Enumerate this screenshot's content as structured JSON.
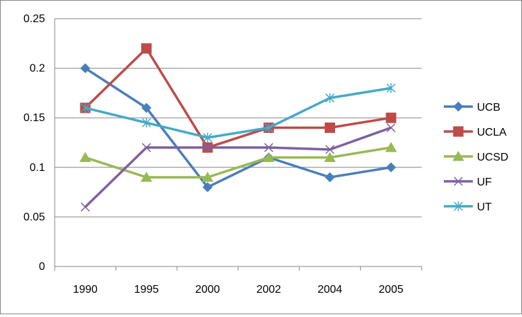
{
  "chart_data": {
    "type": "line",
    "title": "",
    "xlabel": "",
    "ylabel": "",
    "categories": [
      "1990",
      "1995",
      "2000",
      "2002",
      "2004",
      "2005"
    ],
    "ylim": [
      0,
      0.25
    ],
    "y_ticks": [
      "0",
      "0.05",
      "0.1",
      "0.15",
      "0.2",
      "0.25"
    ],
    "grid": "horizontal",
    "legend_position": "right",
    "series": [
      {
        "name": "UCB",
        "color": "#4a7ebb",
        "marker": "diamond",
        "values": [
          0.2,
          0.16,
          0.08,
          0.11,
          0.09,
          0.1
        ]
      },
      {
        "name": "UCLA",
        "color": "#be4b48",
        "marker": "square",
        "values": [
          0.16,
          0.22,
          0.12,
          0.14,
          0.14,
          0.15
        ]
      },
      {
        "name": "UCSD",
        "color": "#98b954",
        "marker": "triangle",
        "values": [
          0.11,
          0.09,
          0.09,
          0.11,
          0.11,
          0.12
        ]
      },
      {
        "name": "UF",
        "color": "#7d60a0",
        "marker": "x",
        "values": [
          0.06,
          0.12,
          0.12,
          0.12,
          0.118,
          0.14
        ]
      },
      {
        "name": "UT",
        "color": "#46aac5",
        "marker": "star",
        "values": [
          0.16,
          0.145,
          0.13,
          0.14,
          0.17,
          0.18
        ]
      }
    ]
  }
}
